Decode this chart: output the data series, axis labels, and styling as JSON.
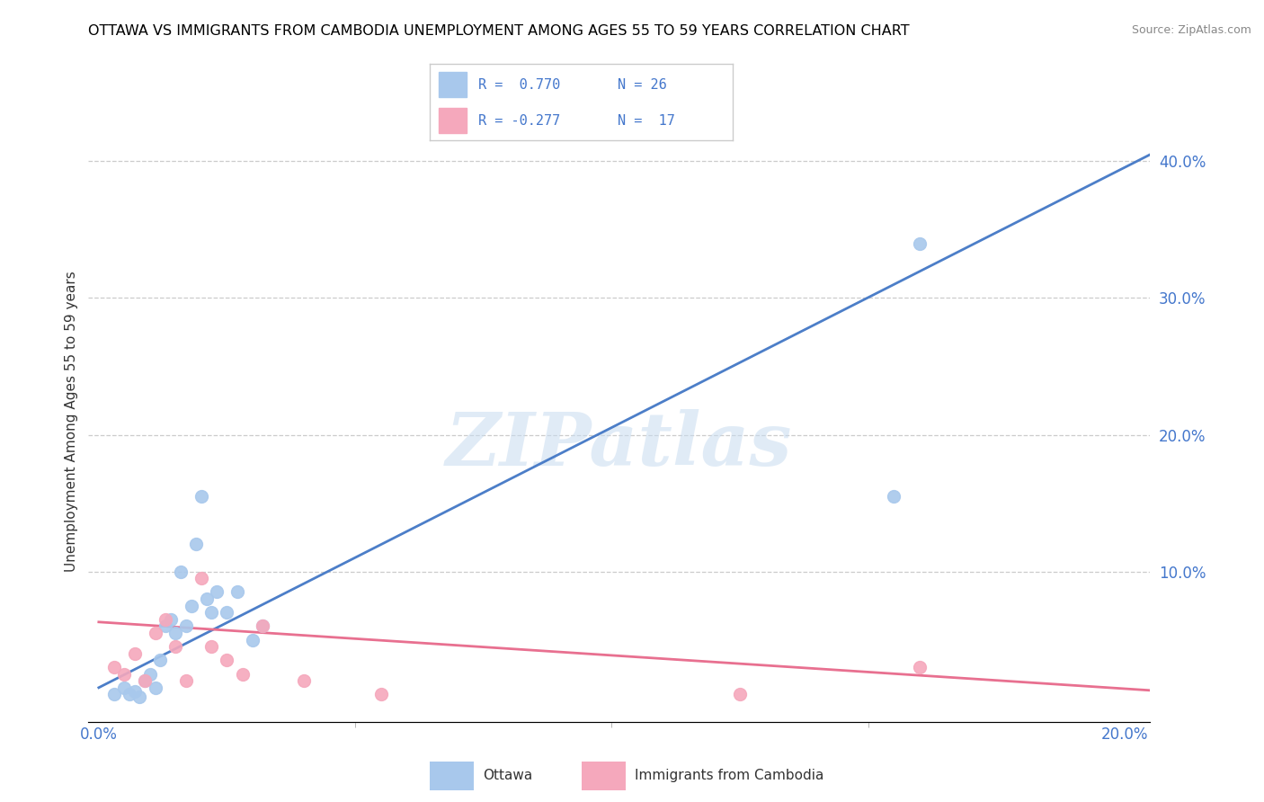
{
  "title": "OTTAWA VS IMMIGRANTS FROM CAMBODIA UNEMPLOYMENT AMONG AGES 55 TO 59 YEARS CORRELATION CHART",
  "source": "Source: ZipAtlas.com",
  "ylabel": "Unemployment Among Ages 55 to 59 years",
  "right_yticks": [
    0.0,
    0.1,
    0.2,
    0.3,
    0.4
  ],
  "right_yticklabels": [
    "",
    "10.0%",
    "20.0%",
    "30.0%",
    "40.0%"
  ],
  "xlim": [
    -0.002,
    0.205
  ],
  "ylim": [
    -0.01,
    0.43
  ],
  "ottawa_color": "#A8C8EC",
  "cambodia_color": "#F5A8BC",
  "ottawa_line_color": "#4C7EC8",
  "cambodia_line_color": "#E87090",
  "watermark": "ZIPatlas",
  "ottawa_r": 0.77,
  "ottawa_n": 26,
  "cambodia_r": -0.277,
  "cambodia_n": 17,
  "ottawa_x": [
    0.003,
    0.005,
    0.006,
    0.007,
    0.008,
    0.009,
    0.01,
    0.011,
    0.012,
    0.013,
    0.014,
    0.015,
    0.016,
    0.017,
    0.018,
    0.019,
    0.02,
    0.021,
    0.022,
    0.023,
    0.025,
    0.027,
    0.03,
    0.032,
    0.155,
    0.16
  ],
  "ottawa_y": [
    0.01,
    0.015,
    0.01,
    0.012,
    0.008,
    0.02,
    0.025,
    0.015,
    0.035,
    0.06,
    0.065,
    0.055,
    0.1,
    0.06,
    0.075,
    0.12,
    0.155,
    0.08,
    0.07,
    0.085,
    0.07,
    0.085,
    0.05,
    0.06,
    0.155,
    0.34
  ],
  "cambodia_x": [
    0.003,
    0.005,
    0.007,
    0.009,
    0.011,
    0.013,
    0.015,
    0.017,
    0.02,
    0.022,
    0.025,
    0.028,
    0.032,
    0.04,
    0.055,
    0.125,
    0.16
  ],
  "cambodia_y": [
    0.03,
    0.025,
    0.04,
    0.02,
    0.055,
    0.065,
    0.045,
    0.02,
    0.095,
    0.045,
    0.035,
    0.025,
    0.06,
    0.02,
    0.01,
    0.01,
    0.03
  ],
  "ott_line_x0": 0.0,
  "ott_line_x1": 0.205,
  "ott_line_y0": 0.015,
  "ott_line_y1": 0.405,
  "cam_line_x0": 0.0,
  "cam_line_x1": 0.205,
  "cam_line_y0": 0.063,
  "cam_line_y1": 0.013
}
